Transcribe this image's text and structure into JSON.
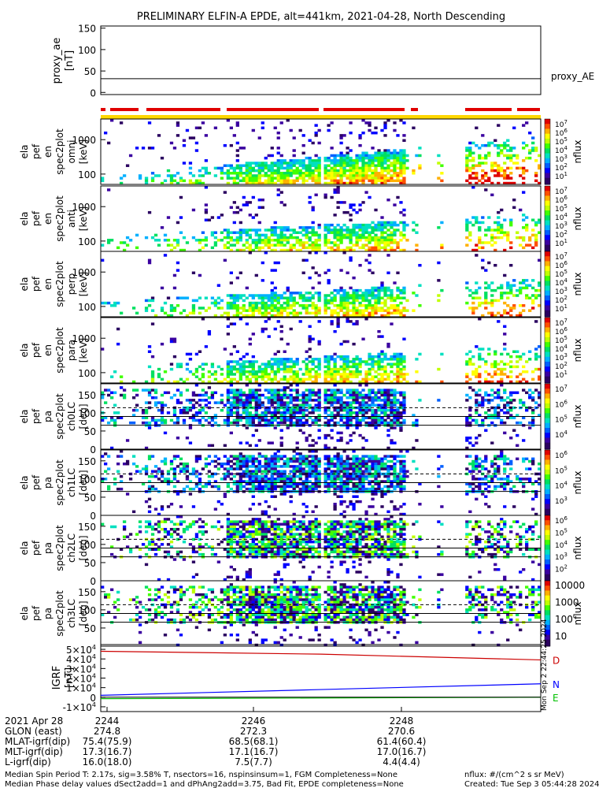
{
  "title": "PRELIMINARY ELFIN-A EPDE, alt=441km, 2021-04-28, North Descending",
  "colors": {
    "red": "#e00000",
    "yellow": "#ffd700",
    "orange": "#ffa500",
    "blue_line": "#0000ff",
    "green_line": "#00c000",
    "red_line": "#cc0000"
  },
  "chart_data": [
    {
      "type": "line",
      "ylabel": "proxy_ae [nT]",
      "yticks": [
        "150",
        "100",
        "50",
        "0"
      ],
      "ylim": [
        -5,
        155
      ],
      "series": [
        {
          "name": "proxy_AE",
          "x": [
            0,
            1
          ],
          "values": [
            32,
            32
          ]
        }
      ]
    },
    {
      "type": "heatmap",
      "panels": [
        {
          "ylabel": [
            "ela",
            "pef",
            "en",
            "spec2plot",
            "omni",
            "[keV]"
          ],
          "yticks": [
            "1000",
            "100"
          ],
          "zlabel": "nflux",
          "ctickes": [
            "10",
            "7"
          ],
          "cbar": [
            [
              "10",
              "7"
            ],
            [
              "10",
              "6"
            ],
            [
              "10",
              "5"
            ],
            [
              "10",
              "4"
            ],
            [
              "10",
              "3"
            ],
            [
              "10",
              "2"
            ],
            [
              "10",
              "1"
            ]
          ]
        },
        {
          "ylabel": [
            "ela",
            "pef",
            "en",
            "spec2plot",
            "anti",
            "[keV]"
          ],
          "yticks": [
            "1000",
            "100"
          ],
          "zlabel": "nflux",
          "cbar": [
            [
              "10",
              "7"
            ],
            [
              "10",
              "6"
            ],
            [
              "10",
              "5"
            ],
            [
              "10",
              "4"
            ],
            [
              "10",
              "3"
            ],
            [
              "10",
              "2"
            ],
            [
              "10",
              "1"
            ]
          ]
        },
        {
          "ylabel": [
            "ela",
            "pef",
            "en",
            "spec2plot",
            "perp",
            "[keV]"
          ],
          "yticks": [
            "1000",
            "100"
          ],
          "zlabel": "nflux",
          "cbar": [
            [
              "10",
              "7"
            ],
            [
              "10",
              "6"
            ],
            [
              "10",
              "5"
            ],
            [
              "10",
              "4"
            ],
            [
              "10",
              "3"
            ],
            [
              "10",
              "2"
            ],
            [
              "10",
              "1"
            ]
          ]
        },
        {
          "ylabel": [
            "ela",
            "pef",
            "en",
            "spec2plot",
            "para",
            "[keV]"
          ],
          "yticks": [
            "1000",
            "100"
          ],
          "zlabel": "nflux",
          "cbar": [
            [
              "10",
              "7"
            ],
            [
              "10",
              "6"
            ],
            [
              "10",
              "5"
            ],
            [
              "10",
              "4"
            ],
            [
              "10",
              "3"
            ],
            [
              "10",
              "2"
            ],
            [
              "10",
              "1"
            ]
          ]
        }
      ]
    },
    {
      "type": "heatmap",
      "panels": [
        {
          "ylabel": [
            "ela",
            "pef",
            "pa",
            "spec2plot",
            "ch0LC",
            "[deg]"
          ],
          "yticks": [
            "150",
            "100",
            "50",
            "0"
          ],
          "zlabel": "nflux",
          "cbar": [
            [
              "10",
              "7"
            ],
            [
              "10",
              "6"
            ],
            [
              "10",
              "5"
            ],
            [
              "10",
              "4"
            ]
          ]
        },
        {
          "ylabel": [
            "ela",
            "pef",
            "pa",
            "spec2plot",
            "ch1LC",
            "[deg]"
          ],
          "yticks": [
            "150",
            "100",
            "50",
            "0"
          ],
          "zlabel": "nflux",
          "cbar": [
            [
              "10",
              "6"
            ],
            [
              "10",
              "5"
            ],
            [
              "10",
              "4"
            ],
            [
              "10",
              "3"
            ]
          ]
        },
        {
          "ylabel": [
            "ela",
            "pef",
            "pa",
            "spec2plot",
            "ch2LC",
            "[deg]"
          ],
          "yticks": [
            "150",
            "100",
            "50",
            "0"
          ],
          "zlabel": "nflux",
          "cbar": [
            [
              "10",
              "6"
            ],
            [
              "10",
              "5"
            ],
            [
              "10",
              "4"
            ],
            [
              "10",
              "3"
            ],
            [
              "10",
              "2"
            ]
          ]
        },
        {
          "ylabel": [
            "ela",
            "pef",
            "pa",
            "spec2plot",
            "ch3LC",
            "[deg]"
          ],
          "yticks": [
            "150",
            "100",
            "50"
          ],
          "zlabel": "nflux",
          "cbar_plain": [
            "10000",
            "1000",
            "100",
            "10"
          ]
        }
      ]
    },
    {
      "type": "line",
      "ylabel": "IGRF [nT]",
      "yticks": [
        [
          "5",
          "4"
        ],
        [
          "4",
          "4"
        ],
        [
          "3",
          "4"
        ],
        [
          "2",
          "4"
        ],
        [
          "1",
          "4"
        ],
        [
          "0",
          ""
        ],
        [
          "-1",
          "4"
        ]
      ],
      "ylim": [
        -15000,
        55000
      ],
      "series": [
        {
          "name": "D",
          "x": [
            0,
            0.5,
            1
          ],
          "values": [
            48000,
            45000,
            39000
          ]
        },
        {
          "name": "N",
          "x": [
            0,
            0.5,
            1
          ],
          "values": [
            2000,
            8000,
            14000
          ]
        },
        {
          "name": "E",
          "x": [
            0,
            0.5,
            1
          ],
          "values": [
            -1500,
            -800,
            0
          ]
        }
      ]
    }
  ],
  "axis": {
    "time_ticks": [
      "2244",
      "2246",
      "2248"
    ],
    "rows": [
      {
        "label": "2021 Apr 28",
        "values": [
          "2244",
          "",
          ""
        ]
      },
      {
        "label": "GLON (east)",
        "values": [
          "274.8",
          "272.3",
          "270.6"
        ]
      },
      {
        "label": "MLAT-igrf(dip)",
        "values": [
          "75.4(75.9)",
          "68.5(68.1)",
          "61.4(60.4)"
        ]
      },
      {
        "label": "MLT-igrf(dip)",
        "values": [
          "17.3(16.7)",
          "17.1(16.7)",
          "17.0(16.7)"
        ]
      },
      {
        "label": "L-igrf(dip)",
        "values": [
          "16.0(18.0)",
          "7.5(7.7)",
          "4.4(4.4)"
        ]
      }
    ],
    "side_stamp": "Mon Sep 2 22:44:25 2024"
  },
  "footer": {
    "line1": "Median Spin Period T: 2.17s, sig=3.58% T, nsectors=16, nspinsinsum=1, FGM Completeness=None",
    "line2": "Median Phase delay values dSect2add=1 and dPhAng2add=3.75, Bad Fit, EPDE completeness=None",
    "units": "nflux: #/(cm^2 s sr MeV)",
    "created": "Created: Tue Sep  3 05:44:28 2024"
  }
}
